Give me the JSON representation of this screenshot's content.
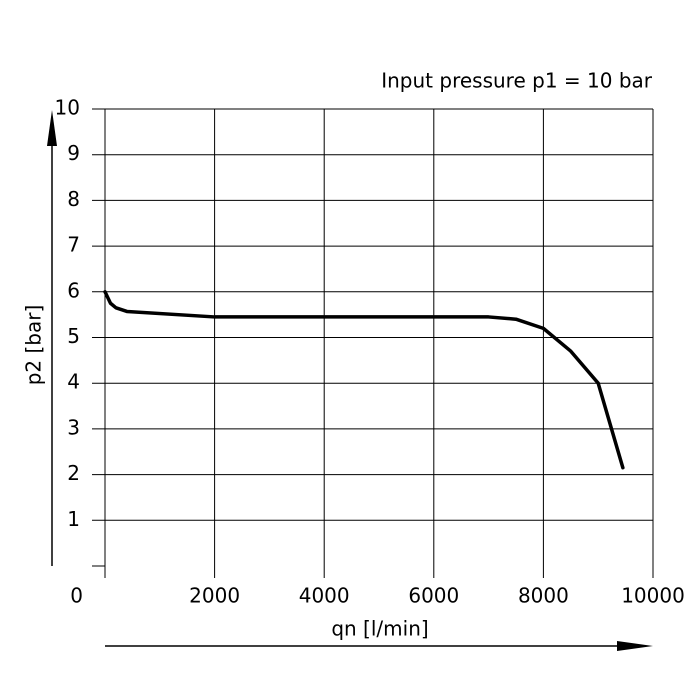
{
  "chart_data": {
    "type": "line",
    "annotation": "Input pressure p1 = 10 bar",
    "x_label": "qn [l/min]",
    "y_label": "p2 [bar]",
    "x": [
      0,
      100,
      200,
      400,
      2000,
      4000,
      6000,
      7000,
      7500,
      8000,
      8500,
      9000,
      9450
    ],
    "series": [
      {
        "color": "#000000",
        "values": [
          6,
          5.75,
          5.65,
          5.57,
          5.45,
          5.45,
          5.45,
          5.45,
          5.4,
          5.2,
          4.7,
          4.0,
          2.15
        ]
      }
    ],
    "xlim": [
      0,
      10000
    ],
    "xticks": [
      0,
      2000,
      4000,
      6000,
      8000,
      10000
    ],
    "ylim": [
      0,
      10
    ],
    "yticks": [
      1,
      2,
      3,
      4,
      5,
      6,
      7,
      8,
      9,
      10
    ],
    "grid": true
  }
}
